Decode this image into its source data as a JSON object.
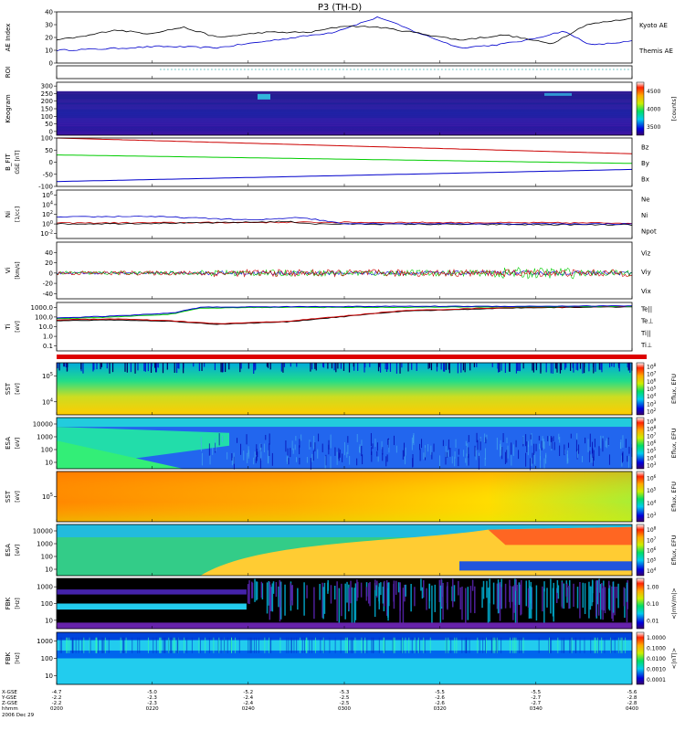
{
  "title": "P3 (TH-D)",
  "chart_data": [
    {
      "id": "ae",
      "type": "line",
      "ylabel": "AE Index",
      "ylim": [
        0,
        40
      ],
      "yticks": [
        "0",
        "10",
        "20",
        "30",
        "40"
      ],
      "series": [
        {
          "name": "Kyoto AE",
          "color": "#0000cc",
          "x": [
            0,
            0.08,
            0.18,
            0.28,
            0.38,
            0.48,
            0.52,
            0.56,
            0.62,
            0.7,
            0.76,
            0.82,
            0.88,
            0.93,
            1.0
          ],
          "values": [
            10,
            11,
            13,
            12,
            18,
            24,
            30,
            36,
            25,
            12,
            14,
            18,
            25,
            14,
            17
          ]
        },
        {
          "name": "Themis AE",
          "color": "#000000",
          "x": [
            0,
            0.05,
            0.1,
            0.16,
            0.22,
            0.28,
            0.36,
            0.44,
            0.5,
            0.56,
            0.62,
            0.7,
            0.78,
            0.86,
            0.92,
            1.0
          ],
          "values": [
            18,
            21,
            26,
            23,
            28,
            20,
            24,
            24,
            29,
            28,
            24,
            18,
            22,
            15,
            30,
            35
          ]
        }
      ]
    },
    {
      "id": "roi",
      "type": "line",
      "ylabel": "ROI",
      "series": [
        {
          "name": "",
          "color": "#009999",
          "x": [
            0.18,
            1.0
          ],
          "values": [
            1,
            1
          ]
        }
      ]
    },
    {
      "id": "keogram",
      "type": "heatmap",
      "ylabel": "Keogram",
      "ylim": [
        0,
        300
      ],
      "yticks": [
        "300",
        "250",
        "200",
        "150",
        "100",
        "50",
        "0"
      ],
      "colorbar": {
        "label": "[counts]",
        "ticks": [
          "4500",
          "4000",
          "3500"
        ],
        "range": [
          3500,
          4800
        ]
      }
    },
    {
      "id": "bfit",
      "type": "line",
      "ylabel": "B_FIT",
      "units": "GSE [nT]",
      "ylim": [
        -100,
        100
      ],
      "yticks": [
        "100",
        "50",
        "0",
        "-50",
        "-100"
      ],
      "series": [
        {
          "name": "Bz",
          "color": "#cc0000",
          "x": [
            0,
            1
          ],
          "values": [
            100,
            35
          ]
        },
        {
          "name": "By",
          "color": "#00cc00",
          "x": [
            0,
            1
          ],
          "values": [
            30,
            -5
          ]
        },
        {
          "name": "Bx",
          "color": "#0000cc",
          "x": [
            0,
            1
          ],
          "values": [
            -80,
            -30
          ]
        }
      ]
    },
    {
      "id": "ni",
      "type": "line",
      "ylabel": "Ni",
      "units": "[1/cc]",
      "ylim_log": [
        -3,
        7
      ],
      "yticks": [
        "10^6",
        "10^4",
        "10^2",
        "10^0",
        "10^-2"
      ],
      "series": [
        {
          "name": "Ne",
          "color": "#cc0000",
          "x": [
            0,
            0.3,
            0.45,
            1
          ],
          "values": [
            0.2,
            0.3,
            0.35,
            0.2
          ]
        },
        {
          "name": "Ni",
          "color": "#000000",
          "x": [
            0,
            0.25,
            0.4,
            0.45,
            1
          ],
          "values": [
            0,
            0.2,
            0.5,
            0,
            -0.2
          ]
        },
        {
          "name": "Npot",
          "color": "#0000cc",
          "x": [
            0,
            0.15,
            0.35,
            0.42,
            0.5,
            1
          ],
          "values": [
            1.4,
            1.6,
            0.8,
            1.4,
            0.1,
            0
          ]
        }
      ]
    },
    {
      "id": "vi",
      "type": "line",
      "ylabel": "Vi",
      "units": "[km/s]",
      "ylim": [
        -50,
        60
      ],
      "yticks": [
        "40",
        "20",
        "0",
        "-20",
        "-40"
      ],
      "series": [
        {
          "name": "Viz",
          "color": "#cc0000"
        },
        {
          "name": "Viy",
          "color": "#00cc00"
        },
        {
          "name": "Vix",
          "color": "#0000cc"
        }
      ]
    },
    {
      "id": "ti",
      "type": "line",
      "ylabel": "Ti",
      "units": "[eV]",
      "ylim_log": [
        -1.5,
        3.5
      ],
      "yticks": [
        "1000.0",
        "100.0",
        "10.0",
        "1.0",
        "0.1"
      ],
      "series": [
        {
          "name": "Te||",
          "color": "#000000"
        },
        {
          "name": "Te⊥",
          "color": "#cc0000"
        },
        {
          "name": "Ti||",
          "color": "#00cc00"
        },
        {
          "name": "Ti⊥",
          "color": "#0000cc"
        }
      ]
    },
    {
      "id": "sst_e",
      "type": "heatmap",
      "ylabel": "SST",
      "units": "[eV]",
      "yticks": [
        "10^5",
        "10^4"
      ],
      "colorbar": {
        "label": "Eflux, EFU",
        "ticks": [
          "10^8",
          "10^7",
          "10^6",
          "10^5",
          "10^4",
          "10^3",
          "10^2"
        ]
      }
    },
    {
      "id": "esa_e",
      "type": "heatmap",
      "ylabel": "ESA",
      "units": "[eV]",
      "yticks": [
        "10000",
        "1000",
        "100",
        "10"
      ],
      "colorbar": {
        "label": "Eflux, EFU",
        "ticks": [
          "10^9",
          "10^8",
          "10^7",
          "10^6",
          "10^5",
          "10^4",
          "10^3"
        ]
      }
    },
    {
      "id": "sst_i",
      "type": "heatmap",
      "ylabel": "SST",
      "units": "[eV]",
      "yticks": [
        "10^5"
      ],
      "colorbar": {
        "label": "Eflux, EFU",
        "ticks": [
          "10^6",
          "10^5",
          "10^4",
          "10^3"
        ]
      }
    },
    {
      "id": "esa_i",
      "type": "heatmap",
      "ylabel": "ESA",
      "units": "[eV]",
      "yticks": [
        "10000",
        "1000",
        "100",
        "10"
      ],
      "colorbar": {
        "label": "Eflux, EFU",
        "ticks": [
          "10^8",
          "10^7",
          "10^6",
          "10^5",
          "10^4"
        ]
      }
    },
    {
      "id": "fbk_e",
      "type": "heatmap",
      "ylabel": "FBK",
      "units": "[Hz]",
      "yticks": [
        "1000",
        "100",
        "10"
      ],
      "colorbar": {
        "label": "<|mV/m|>",
        "ticks": [
          "1.00",
          "0.10",
          "0.01"
        ]
      }
    },
    {
      "id": "fbk_b",
      "type": "heatmap",
      "ylabel": "FBK",
      "units": "[Hz]",
      "yticks": [
        "1000",
        "100",
        "10"
      ],
      "colorbar": {
        "label": "<|nT|>",
        "ticks": [
          "1.0000",
          "0.1000",
          "0.0100",
          "0.0010",
          "0.0001"
        ]
      }
    }
  ],
  "xaxis": {
    "row_labels": [
      "X-GSE",
      "Y-GSE",
      "Z-GSE",
      "hhmm",
      "2006 Dec 29"
    ],
    "ticks": [
      {
        "x": 0.0,
        "vals": [
          "-4.7",
          "-2.2",
          "-2.2",
          "0200"
        ]
      },
      {
        "x": 0.166,
        "vals": [
          "-5.0",
          "-2.3",
          "-2.3",
          "0220"
        ]
      },
      {
        "x": 0.333,
        "vals": [
          "-5.2",
          "-2.4",
          "-2.4",
          "0240"
        ]
      },
      {
        "x": 0.5,
        "vals": [
          "-5.3",
          "-2.5",
          "-2.5",
          "0300"
        ]
      },
      {
        "x": 0.666,
        "vals": [
          "-5.5",
          "-2.6",
          "-2.6",
          "0320"
        ]
      },
      {
        "x": 0.833,
        "vals": [
          "-5.5",
          "-2.7",
          "-2.7",
          "0340"
        ]
      },
      {
        "x": 1.0,
        "vals": [
          "-5.6",
          "-2.8",
          "-2.8",
          "0400"
        ]
      }
    ]
  }
}
